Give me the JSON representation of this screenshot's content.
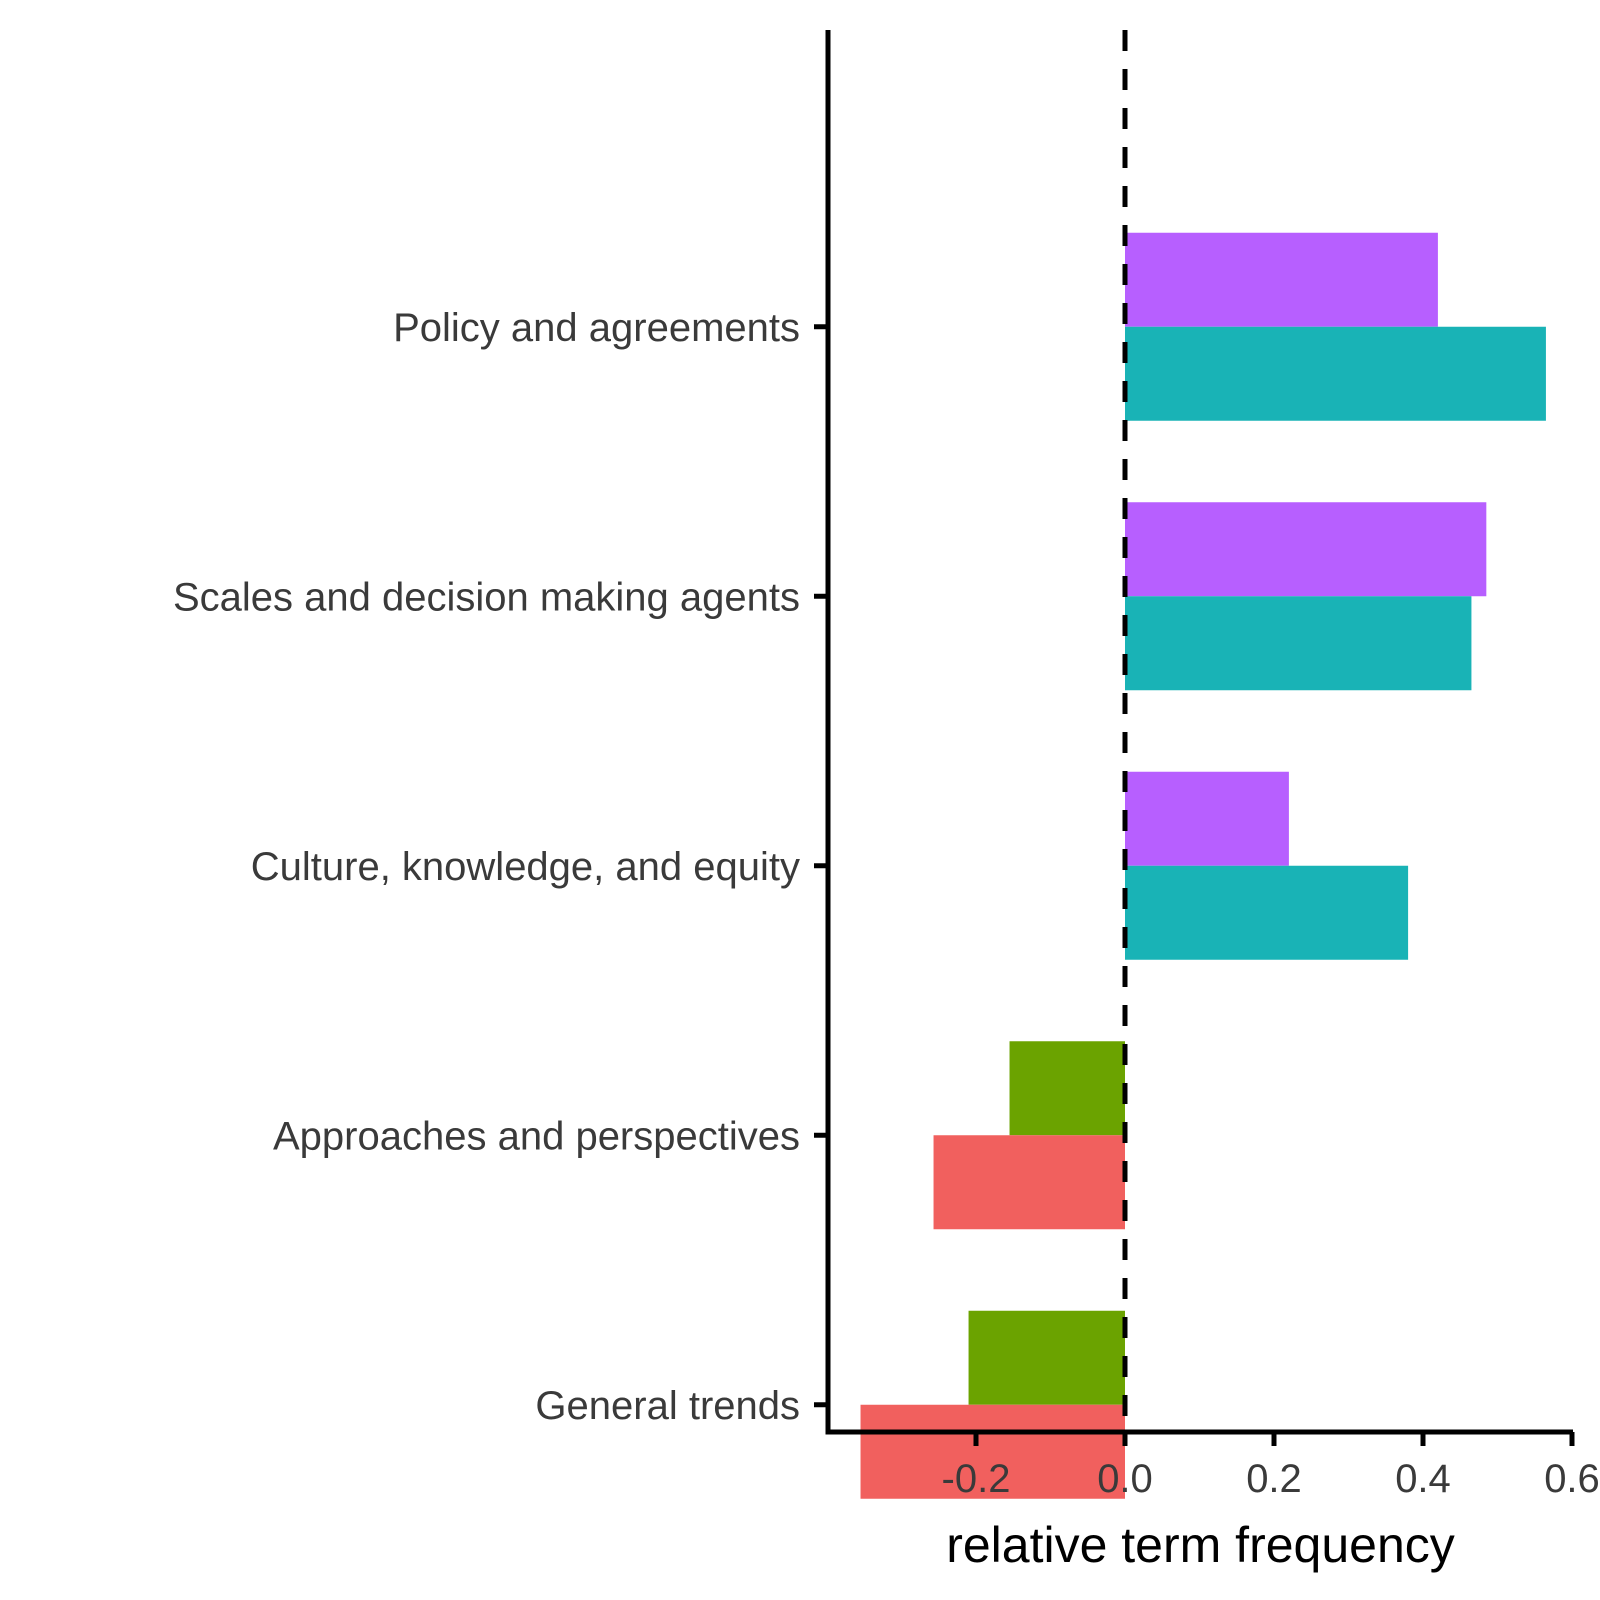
{
  "chart_data": {
    "type": "bar",
    "orientation": "horizontal",
    "categories": [
      "Policy and agreements",
      "Scales and decision making agents",
      "Culture, knowledge, and equity",
      "Approaches and perspectives",
      "General trends"
    ],
    "series": [
      {
        "color": "#B75FFF",
        "values": [
          0.42,
          0.485,
          0.22,
          null,
          null
        ]
      },
      {
        "color": "#19B3B6",
        "values": [
          0.565,
          0.465,
          0.38,
          null,
          null
        ]
      },
      {
        "color": "#6BA300",
        "values": [
          null,
          null,
          null,
          -0.155,
          -0.21
        ]
      },
      {
        "color": "#F1605E",
        "values": [
          null,
          null,
          null,
          -0.257,
          -0.355
        ]
      }
    ],
    "xlabel": "relative term frequency",
    "ylabel": "",
    "title": "",
    "xlim": [
      -0.4,
      0.605
    ],
    "xticks": [
      -0.2,
      0.0,
      0.2,
      0.4,
      0.6
    ],
    "xtick_labels": [
      "-0.2",
      "0.0",
      "0.2",
      "0.4",
      "0.6"
    ],
    "reference_line": {
      "x": 0,
      "style": "dashed"
    },
    "grid": false,
    "legend": "none"
  }
}
